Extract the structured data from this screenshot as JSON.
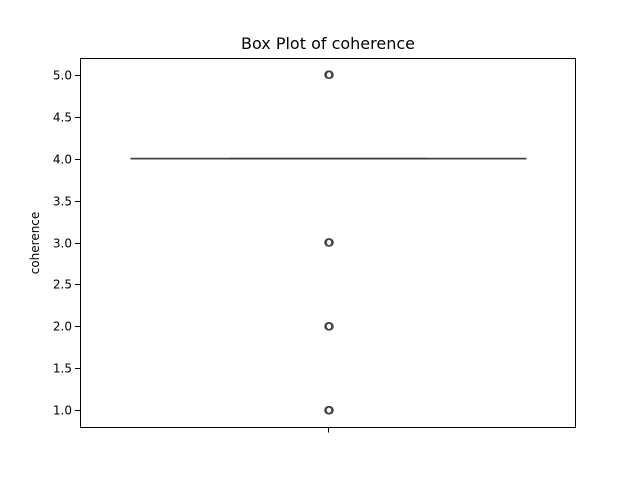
{
  "chart_data": {
    "type": "box",
    "title": "Box Plot of coherence",
    "xlabel": "",
    "ylabel": "coherence",
    "ylim": [
      0.8,
      5.2
    ],
    "yticks": [
      1.0,
      1.5,
      2.0,
      2.5,
      3.0,
      3.5,
      4.0,
      4.5,
      5.0
    ],
    "ytick_labels": [
      "1.0",
      "1.5",
      "2.0",
      "2.5",
      "3.0",
      "3.5",
      "4.0",
      "4.5",
      "5.0"
    ],
    "grid": false,
    "series": [
      {
        "min_whisker": 4.0,
        "q1": 4.0,
        "median": 4.0,
        "q3": 4.0,
        "max_whisker": 4.0,
        "outliers": [
          5.0,
          3.0,
          2.0,
          1.0
        ]
      }
    ],
    "colors": {
      "line": "#3f3f3f",
      "outlier_edge": "#3f3f3f",
      "axes": "#000000"
    }
  }
}
